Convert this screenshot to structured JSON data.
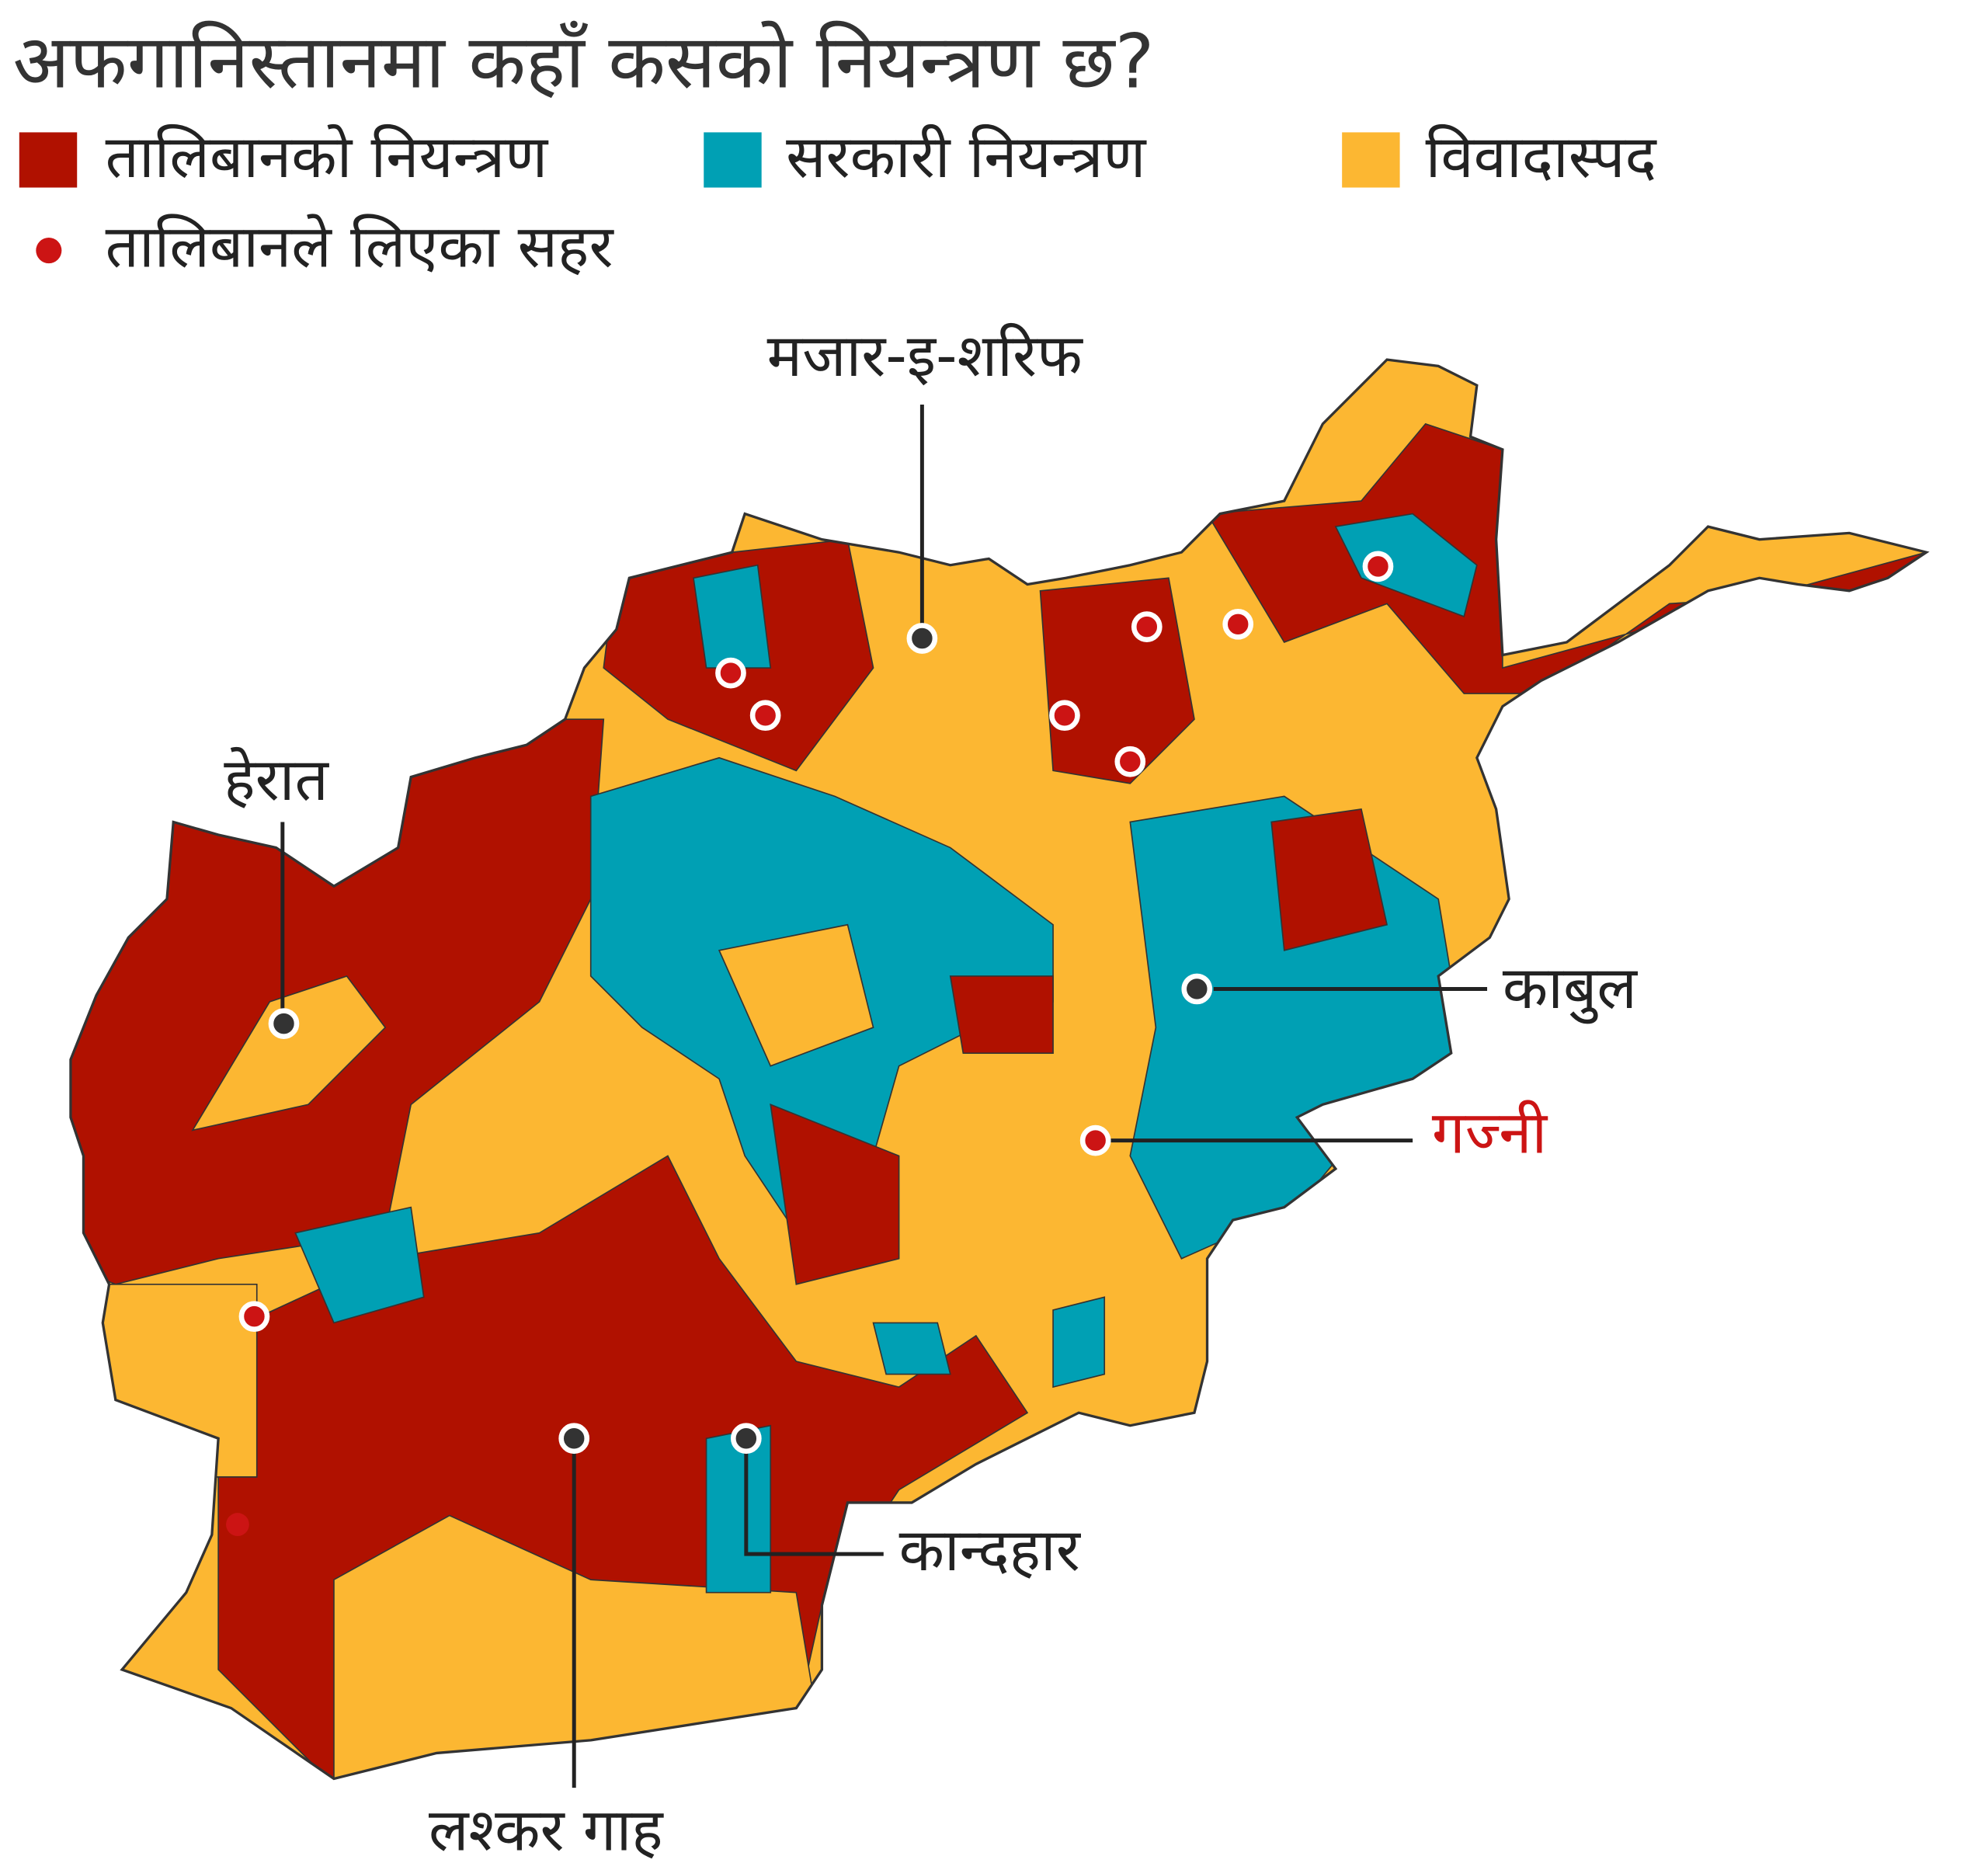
{
  "header": {
    "title": "अफगानिस्तानमा कहाँ कसको नियन्त्रण छ?"
  },
  "legend": {
    "items": [
      {
        "label": "तालिबानको नियन्त्रण",
        "color": "#b01100"
      },
      {
        "label": "सरकारी नियन्त्रण",
        "color": "#00a0b4"
      },
      {
        "label": "विवादास्पद",
        "color": "#fcb732"
      }
    ],
    "taken_cities": {
      "label": "तालिबानले लिएका सहर",
      "color": "#cc1414"
    }
  },
  "cities": [
    {
      "name": "मजार-इ-शरिफ"
    },
    {
      "name": "हेरात"
    },
    {
      "name": "काबुल"
    },
    {
      "name": "गज्नी"
    },
    {
      "name": "लश्कर गाह"
    },
    {
      "name": "कान्दहार"
    }
  ]
}
